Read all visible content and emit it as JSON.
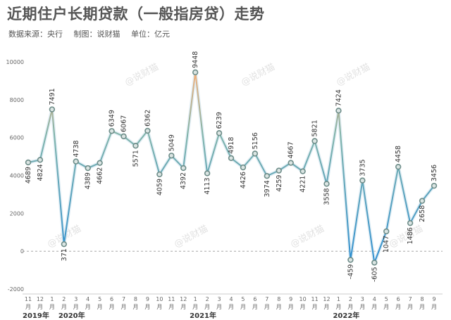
{
  "header": {
    "title": "近期住户长期贷款（一般指房贷）走势",
    "source": "数据来源：央行",
    "maker": "制图：说财猫",
    "unit": "单位：亿元"
  },
  "watermark": "@说财猫",
  "colors": {
    "line_top": "#f5b07a",
    "line_mid": "#7fb3a9",
    "line_bottom": "#2f8fd2",
    "marker_fill": "#dbe5e3",
    "marker_stroke": "#6d8c88"
  },
  "chart_data": {
    "type": "line",
    "ylim": [
      -2000,
      10000
    ],
    "yticks": [
      -2000,
      0,
      2000,
      4000,
      6000,
      8000,
      10000
    ],
    "grid": false,
    "x": [
      "11月",
      "12月",
      "1月",
      "2月",
      "3月",
      "4月",
      "5月",
      "6月",
      "7月",
      "8月",
      "9月",
      "10月",
      "11月",
      "12月",
      "1月",
      "2月",
      "3月",
      "4月",
      "5月",
      "6月",
      "7月",
      "8月",
      "9月",
      "10月",
      "11月",
      "12月",
      "1月",
      "2月",
      "3月",
      "4月",
      "5月",
      "6月",
      "7月",
      "8月",
      "9月"
    ],
    "series": [
      {
        "values": [
          4689,
          4824,
          7491,
          371,
          4738,
          4389,
          4662,
          6349,
          6067,
          5571,
          6362,
          4059,
          5049,
          4392,
          9448,
          4113,
          6239,
          4918,
          4426,
          5156,
          3974,
          4259,
          4667,
          4221,
          5821,
          3558,
          7424,
          -459,
          3735,
          -605,
          1047,
          4458,
          1486,
          2658,
          3456
        ]
      }
    ],
    "year_labels": [
      {
        "index": 0,
        "label": "2019年"
      },
      {
        "index": 3,
        "label": "2020年"
      },
      {
        "index": 14,
        "label": "2021年"
      },
      {
        "index": 26,
        "label": "2022年"
      }
    ]
  }
}
